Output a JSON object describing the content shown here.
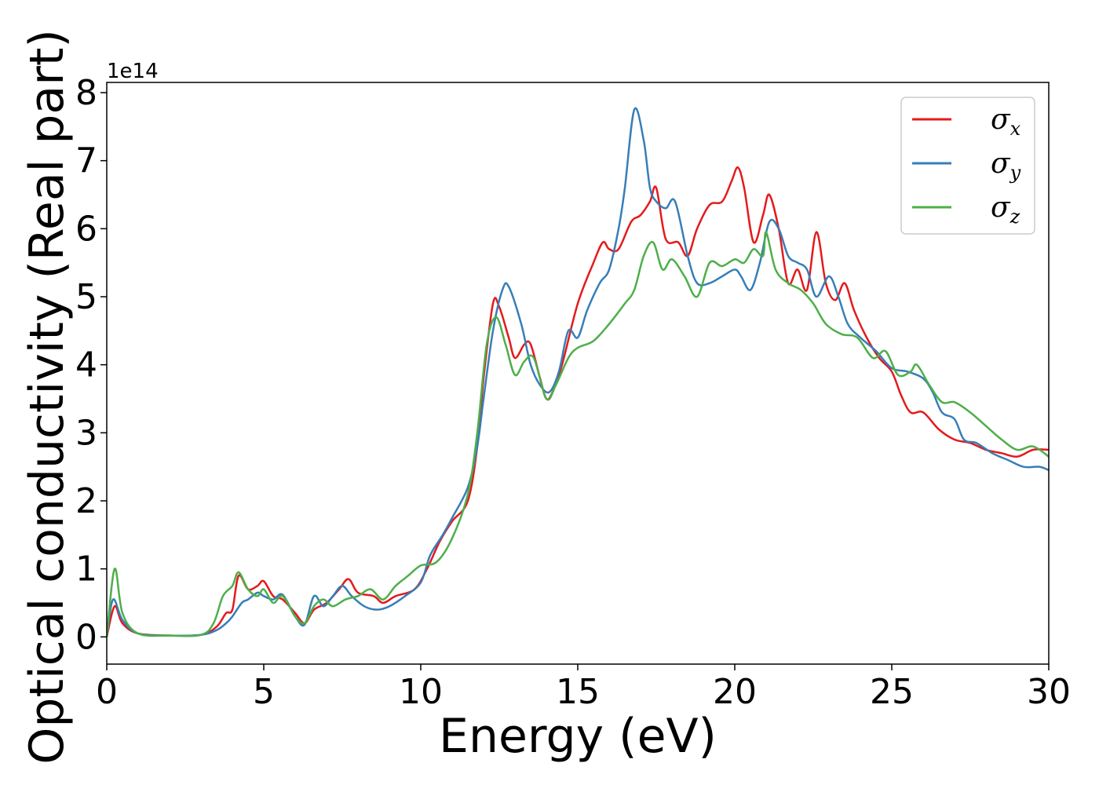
{
  "chart_data": {
    "type": "line",
    "title": "",
    "xlabel": "Energy (eV)",
    "ylabel": "Optical conductivity (Real part)",
    "y_offset_label": "1e14",
    "xlim": [
      0,
      30
    ],
    "ylim": [
      -0.4,
      8.15
    ],
    "x_ticks": [
      0,
      5,
      10,
      15,
      20,
      25,
      30
    ],
    "y_ticks": [
      0,
      1,
      2,
      3,
      4,
      5,
      6,
      7,
      8
    ],
    "x_tick_labels": [
      "0",
      "5",
      "10",
      "15",
      "20",
      "25",
      "30"
    ],
    "y_tick_labels": [
      "0",
      "1",
      "2",
      "3",
      "4",
      "5",
      "6",
      "7",
      "8"
    ],
    "grid": false,
    "legend_position": "top-right",
    "series": [
      {
        "name": "σx",
        "name_base": "σ",
        "name_sub": "x",
        "color": "#e41a1c",
        "points": [
          [
            0,
            0
          ],
          [
            0.25,
            0.45
          ],
          [
            0.5,
            0.2
          ],
          [
            1,
            0.05
          ],
          [
            2,
            0.02
          ],
          [
            3,
            0.03
          ],
          [
            3.5,
            0.15
          ],
          [
            3.8,
            0.35
          ],
          [
            4,
            0.4
          ],
          [
            4.2,
            0.9
          ],
          [
            4.5,
            0.7
          ],
          [
            4.8,
            0.75
          ],
          [
            5,
            0.82
          ],
          [
            5.3,
            0.6
          ],
          [
            5.6,
            0.55
          ],
          [
            6,
            0.35
          ],
          [
            6.3,
            0.2
          ],
          [
            6.6,
            0.4
          ],
          [
            7,
            0.5
          ],
          [
            7.4,
            0.7
          ],
          [
            7.7,
            0.85
          ],
          [
            8,
            0.65
          ],
          [
            8.5,
            0.6
          ],
          [
            8.8,
            0.5
          ],
          [
            9.2,
            0.6
          ],
          [
            9.8,
            0.7
          ],
          [
            10.2,
            1.0
          ],
          [
            10.6,
            1.4
          ],
          [
            11,
            1.7
          ],
          [
            11.5,
            2.0
          ],
          [
            11.8,
            2.8
          ],
          [
            12,
            3.8
          ],
          [
            12.3,
            4.9
          ],
          [
            12.5,
            4.85
          ],
          [
            12.8,
            4.4
          ],
          [
            13,
            4.1
          ],
          [
            13.3,
            4.3
          ],
          [
            13.5,
            4.3
          ],
          [
            13.8,
            3.8
          ],
          [
            14,
            3.5
          ],
          [
            14.2,
            3.6
          ],
          [
            14.5,
            4.0
          ],
          [
            15,
            4.9
          ],
          [
            15.5,
            5.5
          ],
          [
            15.8,
            5.8
          ],
          [
            16,
            5.7
          ],
          [
            16.3,
            5.7
          ],
          [
            16.7,
            6.1
          ],
          [
            17,
            6.2
          ],
          [
            17.3,
            6.4
          ],
          [
            17.5,
            6.6
          ],
          [
            17.8,
            5.85
          ],
          [
            18.2,
            5.8
          ],
          [
            18.5,
            5.6
          ],
          [
            18.8,
            6.0
          ],
          [
            19.2,
            6.35
          ],
          [
            19.6,
            6.4
          ],
          [
            19.9,
            6.7
          ],
          [
            20.1,
            6.9
          ],
          [
            20.3,
            6.6
          ],
          [
            20.6,
            5.8
          ],
          [
            20.9,
            6.2
          ],
          [
            21.1,
            6.5
          ],
          [
            21.4,
            6.0
          ],
          [
            21.7,
            5.2
          ],
          [
            22,
            5.4
          ],
          [
            22.3,
            5.1
          ],
          [
            22.6,
            5.95
          ],
          [
            22.9,
            5.2
          ],
          [
            23.2,
            4.95
          ],
          [
            23.5,
            5.2
          ],
          [
            23.8,
            4.8
          ],
          [
            24.2,
            4.4
          ],
          [
            24.6,
            4.1
          ],
          [
            25,
            3.9
          ],
          [
            25.3,
            3.55
          ],
          [
            25.6,
            3.3
          ],
          [
            26,
            3.3
          ],
          [
            26.5,
            3.05
          ],
          [
            27,
            2.9
          ],
          [
            27.5,
            2.85
          ],
          [
            28,
            2.75
          ],
          [
            28.5,
            2.7
          ],
          [
            29,
            2.65
          ],
          [
            29.5,
            2.75
          ],
          [
            30,
            2.75
          ]
        ]
      },
      {
        "name": "σy",
        "name_base": "σ",
        "name_sub": "y",
        "color": "#377eb8",
        "points": [
          [
            0,
            0
          ],
          [
            0.2,
            0.55
          ],
          [
            0.5,
            0.25
          ],
          [
            1,
            0.05
          ],
          [
            2,
            0.02
          ],
          [
            3,
            0.03
          ],
          [
            3.5,
            0.1
          ],
          [
            3.8,
            0.2
          ],
          [
            4,
            0.3
          ],
          [
            4.3,
            0.5
          ],
          [
            4.5,
            0.55
          ],
          [
            4.8,
            0.65
          ],
          [
            5,
            0.6
          ],
          [
            5.3,
            0.55
          ],
          [
            5.6,
            0.62
          ],
          [
            6,
            0.3
          ],
          [
            6.3,
            0.18
          ],
          [
            6.6,
            0.6
          ],
          [
            6.9,
            0.45
          ],
          [
            7.2,
            0.6
          ],
          [
            7.5,
            0.75
          ],
          [
            7.8,
            0.6
          ],
          [
            8.2,
            0.45
          ],
          [
            8.6,
            0.4
          ],
          [
            9,
            0.45
          ],
          [
            9.5,
            0.6
          ],
          [
            10,
            0.8
          ],
          [
            10.3,
            1.2
          ],
          [
            10.7,
            1.5
          ],
          [
            11,
            1.75
          ],
          [
            11.5,
            2.2
          ],
          [
            11.8,
            2.8
          ],
          [
            12,
            3.5
          ],
          [
            12.3,
            4.5
          ],
          [
            12.6,
            5.1
          ],
          [
            12.8,
            5.15
          ],
          [
            13.2,
            4.6
          ],
          [
            13.5,
            4.0
          ],
          [
            13.8,
            3.7
          ],
          [
            14.1,
            3.6
          ],
          [
            14.4,
            3.9
          ],
          [
            14.7,
            4.5
          ],
          [
            15,
            4.4
          ],
          [
            15.3,
            4.8
          ],
          [
            15.7,
            5.2
          ],
          [
            16,
            5.4
          ],
          [
            16.3,
            6.0
          ],
          [
            16.5,
            6.6
          ],
          [
            16.8,
            7.75
          ],
          [
            17.1,
            7.3
          ],
          [
            17.3,
            6.6
          ],
          [
            17.5,
            6.4
          ],
          [
            17.8,
            6.3
          ],
          [
            18.1,
            6.4
          ],
          [
            18.5,
            5.6
          ],
          [
            18.8,
            5.2
          ],
          [
            19.2,
            5.2
          ],
          [
            19.6,
            5.3
          ],
          [
            20,
            5.4
          ],
          [
            20.2,
            5.3
          ],
          [
            20.5,
            5.1
          ],
          [
            20.8,
            5.5
          ],
          [
            21.1,
            6.1
          ],
          [
            21.4,
            6.0
          ],
          [
            21.7,
            5.6
          ],
          [
            22,
            5.5
          ],
          [
            22.3,
            5.4
          ],
          [
            22.6,
            5.0
          ],
          [
            23,
            5.3
          ],
          [
            23.3,
            5.0
          ],
          [
            23.6,
            4.6
          ],
          [
            24,
            4.4
          ],
          [
            24.5,
            4.2
          ],
          [
            25,
            3.95
          ],
          [
            25.5,
            3.9
          ],
          [
            26,
            3.8
          ],
          [
            26.3,
            3.6
          ],
          [
            26.6,
            3.3
          ],
          [
            27,
            3.2
          ],
          [
            27.3,
            2.9
          ],
          [
            27.7,
            2.85
          ],
          [
            28.2,
            2.7
          ],
          [
            28.7,
            2.6
          ],
          [
            29.2,
            2.5
          ],
          [
            29.7,
            2.5
          ],
          [
            30,
            2.45
          ]
        ]
      },
      {
        "name": "σz",
        "name_base": "σ",
        "name_sub": "z",
        "color": "#4daf4a",
        "points": [
          [
            0,
            0
          ],
          [
            0.25,
            1.0
          ],
          [
            0.5,
            0.35
          ],
          [
            1,
            0.05
          ],
          [
            2,
            0.02
          ],
          [
            3,
            0.03
          ],
          [
            3.4,
            0.2
          ],
          [
            3.7,
            0.6
          ],
          [
            4,
            0.75
          ],
          [
            4.2,
            0.95
          ],
          [
            4.5,
            0.7
          ],
          [
            4.8,
            0.6
          ],
          [
            5,
            0.7
          ],
          [
            5.3,
            0.5
          ],
          [
            5.6,
            0.6
          ],
          [
            6,
            0.3
          ],
          [
            6.3,
            0.2
          ],
          [
            6.6,
            0.45
          ],
          [
            6.9,
            0.55
          ],
          [
            7.2,
            0.45
          ],
          [
            7.6,
            0.55
          ],
          [
            8,
            0.6
          ],
          [
            8.4,
            0.7
          ],
          [
            8.8,
            0.55
          ],
          [
            9.2,
            0.75
          ],
          [
            9.6,
            0.9
          ],
          [
            10,
            1.05
          ],
          [
            10.5,
            1.1
          ],
          [
            11,
            1.45
          ],
          [
            11.5,
            2.1
          ],
          [
            11.8,
            3.0
          ],
          [
            12.1,
            4.3
          ],
          [
            12.4,
            4.7
          ],
          [
            12.7,
            4.3
          ],
          [
            13,
            3.85
          ],
          [
            13.3,
            4.05
          ],
          [
            13.6,
            4.1
          ],
          [
            14,
            3.5
          ],
          [
            14.3,
            3.7
          ],
          [
            14.7,
            4.1
          ],
          [
            15,
            4.25
          ],
          [
            15.5,
            4.35
          ],
          [
            16,
            4.6
          ],
          [
            16.5,
            4.9
          ],
          [
            16.8,
            5.1
          ],
          [
            17.1,
            5.6
          ],
          [
            17.4,
            5.8
          ],
          [
            17.7,
            5.4
          ],
          [
            18,
            5.55
          ],
          [
            18.4,
            5.3
          ],
          [
            18.8,
            5.0
          ],
          [
            19.2,
            5.5
          ],
          [
            19.6,
            5.45
          ],
          [
            20,
            5.55
          ],
          [
            20.3,
            5.5
          ],
          [
            20.6,
            5.7
          ],
          [
            20.9,
            5.6
          ],
          [
            21,
            5.95
          ],
          [
            21.3,
            5.4
          ],
          [
            21.7,
            5.2
          ],
          [
            22.1,
            5.1
          ],
          [
            22.5,
            4.9
          ],
          [
            22.9,
            4.6
          ],
          [
            23.4,
            4.45
          ],
          [
            23.9,
            4.4
          ],
          [
            24.4,
            4.1
          ],
          [
            24.8,
            4.2
          ],
          [
            25.2,
            3.85
          ],
          [
            25.6,
            3.9
          ],
          [
            25.8,
            4.0
          ],
          [
            26.2,
            3.7
          ],
          [
            26.6,
            3.45
          ],
          [
            27,
            3.45
          ],
          [
            27.5,
            3.3
          ],
          [
            28,
            3.1
          ],
          [
            28.5,
            2.9
          ],
          [
            29,
            2.75
          ],
          [
            29.5,
            2.8
          ],
          [
            30,
            2.65
          ]
        ]
      }
    ]
  }
}
